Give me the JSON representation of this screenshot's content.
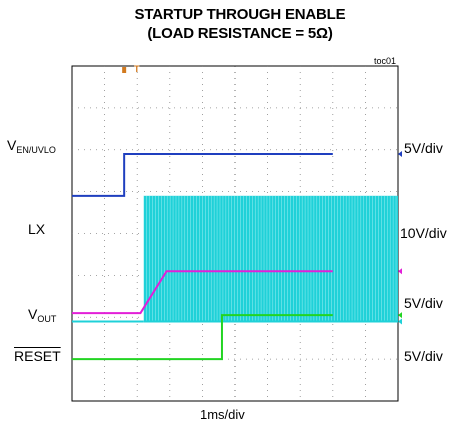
{
  "chart_data": {
    "type": "line",
    "title": "STARTUP THROUGH ENABLE",
    "subtitle": "(LOAD RESISTANCE = 5Ω)",
    "figure_id": "toc01",
    "xlabel": "1ms/div",
    "x_divisions": 10,
    "y_divisions": 8,
    "grid": true,
    "trigger_marker": "T",
    "series": [
      {
        "label_main": "V",
        "label_sub": "EN/UVLO",
        "overline": false,
        "scale": "5V/div",
        "color": "#1f3fbf",
        "kind": "step",
        "x": [
          0,
          1.6,
          1.6,
          8
        ],
        "y": [
          4.9,
          4.9,
          5.9,
          5.9
        ]
      },
      {
        "label_main": "LX",
        "label_sub": "",
        "overline": false,
        "scale": "10V/div",
        "color": "#1fd1d8",
        "kind": "switching",
        "start": 2.2,
        "low": 1.9,
        "high": 4.9
      },
      {
        "label_main": "V",
        "label_sub": "OUT",
        "overline": false,
        "scale": "5V/div",
        "color": "#e21fd8",
        "kind": "ramp",
        "x": [
          0,
          2.1,
          2.9,
          8
        ],
        "y": [
          2.1,
          2.1,
          3.1,
          3.1
        ]
      },
      {
        "label_main": "RESET",
        "label_sub": "",
        "overline": true,
        "scale": "5V/div",
        "color": "#22d422",
        "kind": "step",
        "x": [
          0,
          4.6,
          4.6,
          8
        ],
        "y": [
          1.0,
          1.0,
          2.05,
          2.05
        ]
      }
    ]
  }
}
